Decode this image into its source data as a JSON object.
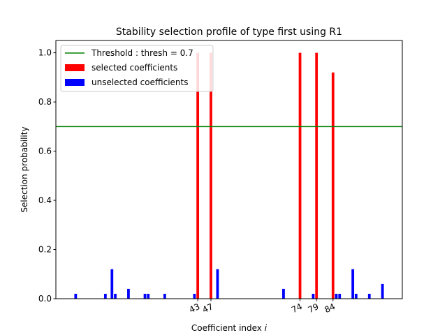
{
  "chart_data": {
    "type": "bar",
    "title": "Stability selection profile of type first using R1",
    "xlabel": "Coefficient index",
    "xlabel_var": "i",
    "ylabel": "Selection probability",
    "xlim": [
      0,
      105
    ],
    "ylim": [
      0,
      1.05
    ],
    "yticks": [
      0.0,
      0.2,
      0.4,
      0.6,
      0.8,
      1.0
    ],
    "yticklabels": [
      "0.0",
      "0.2",
      "0.4",
      "0.6",
      "0.8",
      "1.0"
    ],
    "xticks": [
      43,
      47,
      74,
      79,
      84
    ],
    "xticklabels": [
      "43",
      "47",
      "74",
      "79",
      "84"
    ],
    "threshold": {
      "value": 0.7,
      "label": "Threshold : thresh = 0.7",
      "color": "#008000"
    },
    "legend_position": "top-left",
    "series": [
      {
        "name": "selected coefficients",
        "color": "#ff0000",
        "x": [
          43,
          47,
          74,
          79,
          84
        ],
        "values": [
          1.0,
          1.0,
          1.0,
          1.0,
          0.92
        ]
      },
      {
        "name": "unselected coefficients",
        "color": "#0000ff",
        "x": [
          6,
          15,
          17,
          18,
          22,
          27,
          28,
          33,
          42,
          49,
          69,
          78,
          85,
          86,
          90,
          91,
          95,
          99
        ],
        "values": [
          0.02,
          0.02,
          0.12,
          0.02,
          0.04,
          0.02,
          0.02,
          0.02,
          0.02,
          0.12,
          0.04,
          0.02,
          0.02,
          0.02,
          0.12,
          0.02,
          0.02,
          0.06
        ]
      }
    ]
  }
}
